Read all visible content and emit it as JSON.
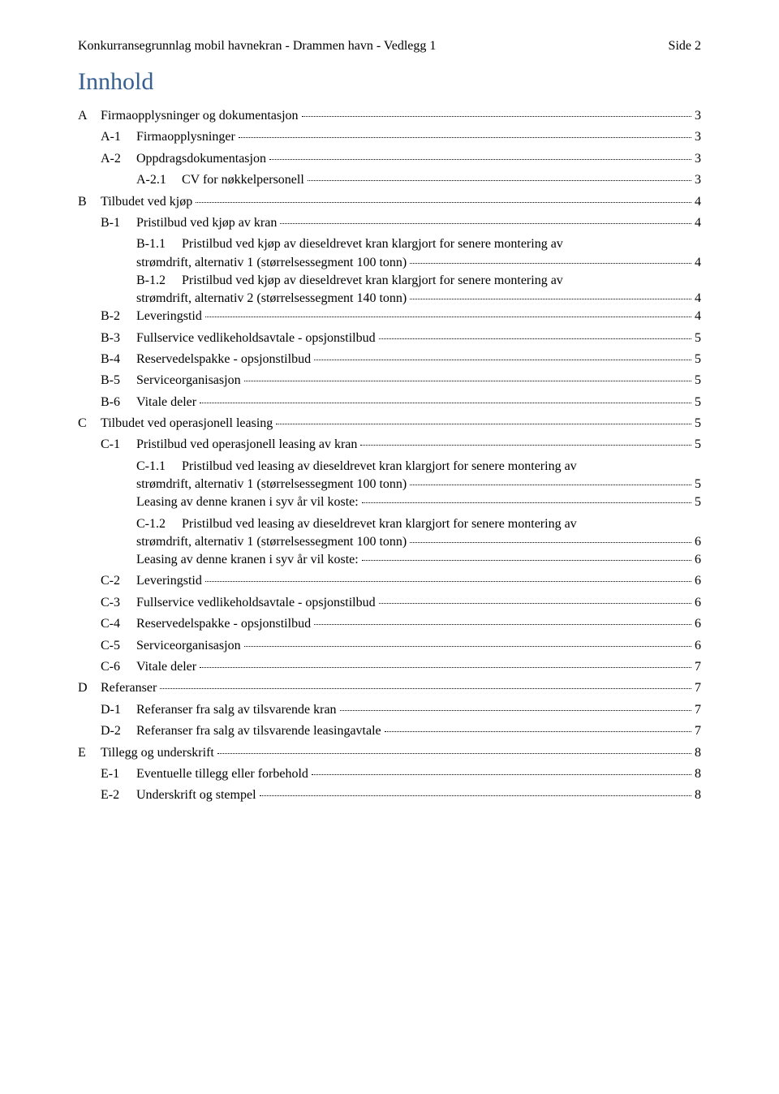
{
  "header": {
    "left": "Konkurransegrunnlag mobil havnekran - Drammen havn - Vedlegg 1",
    "right": "Side 2"
  },
  "title": "Innhold",
  "entries": [
    {
      "level": 0,
      "label": "A",
      "text": "Firmaopplysninger og dokumentasjon",
      "page": "3"
    },
    {
      "level": 1,
      "label": "A-1",
      "text": "Firmaopplysninger",
      "page": "3"
    },
    {
      "level": 1,
      "label": "A-2",
      "text": "Oppdragsdokumentasjon",
      "page": "3"
    },
    {
      "level": 2,
      "label": "A-2.1",
      "text": "CV for nøkkelpersonell",
      "page": "3"
    },
    {
      "level": 0,
      "label": "B",
      "text": "Tilbudet ved kjøp",
      "page": "4"
    },
    {
      "level": 1,
      "label": "B-1",
      "text": "Pristilbud ved kjøp av kran",
      "page": "4"
    },
    {
      "level": 2,
      "label": "B-1.1",
      "text1": "Pristilbud ved kjøp av dieseldrevet kran klargjort for senere montering av",
      "text2": "strømdrift, alternativ 1 (størrelsessegment 100 tonn)",
      "page": "4",
      "multiline": true
    },
    {
      "level": 2,
      "label": "B-1.2",
      "text1": "Pristilbud ved kjøp av dieseldrevet kran klargjort for senere montering av",
      "text2": "strømdrift, alternativ 2 (størrelsessegment 140 tonn)",
      "page": "4",
      "multiline": true
    },
    {
      "level": 1,
      "label": "B-2",
      "text": "Leveringstid",
      "page": "4"
    },
    {
      "level": 1,
      "label": "B-3",
      "text": "Fullservice vedlikeholdsavtale - opsjonstilbud",
      "page": "5"
    },
    {
      "level": 1,
      "label": "B-4",
      "text": "Reservedelspakke - opsjonstilbud",
      "page": "5"
    },
    {
      "level": 1,
      "label": "B-5",
      "text": "Serviceorganisasjon",
      "page": "5"
    },
    {
      "level": 1,
      "label": "B-6",
      "text": "Vitale deler",
      "page": "5"
    },
    {
      "level": 0,
      "label": "C",
      "text": "Tilbudet ved operasjonell leasing",
      "page": "5"
    },
    {
      "level": 1,
      "label": "C-1",
      "text": "Pristilbud ved operasjonell leasing av kran",
      "page": "5"
    },
    {
      "level": 2,
      "label": "C-1.1",
      "text1": "Pristilbud ved leasing av dieseldrevet kran klargjort for senere montering av",
      "text2": "strømdrift, alternativ 1 (størrelsessegment 100 tonn)",
      "page": "5",
      "multiline": true
    },
    {
      "level": "2b",
      "label": "",
      "text": "Leasing av denne kranen i syv år vil koste:",
      "page": "5"
    },
    {
      "level": 2,
      "label": "C-1.2",
      "text1": "Pristilbud ved leasing av dieseldrevet kran klargjort for senere montering av",
      "text2": "strømdrift, alternativ 1 (størrelsessegment 100 tonn)",
      "page": "6",
      "multiline": true
    },
    {
      "level": "2b",
      "label": "",
      "text": "Leasing av denne kranen i syv år vil koste:",
      "page": "6"
    },
    {
      "level": 1,
      "label": "C-2",
      "text": "Leveringstid",
      "page": "6"
    },
    {
      "level": 1,
      "label": "C-3",
      "text": "Fullservice vedlikeholdsavtale - opsjonstilbud",
      "page": "6"
    },
    {
      "level": 1,
      "label": "C-4",
      "text": "Reservedelspakke - opsjonstilbud",
      "page": "6"
    },
    {
      "level": 1,
      "label": "C-5",
      "text": "Serviceorganisasjon",
      "page": "6"
    },
    {
      "level": 1,
      "label": "C-6",
      "text": "Vitale deler",
      "page": "7"
    },
    {
      "level": 0,
      "label": "D",
      "text": "Referanser",
      "page": "7"
    },
    {
      "level": 1,
      "label": "D-1",
      "text": "Referanser fra salg av tilsvarende kran",
      "page": "7"
    },
    {
      "level": 1,
      "label": "D-2",
      "text": "Referanser fra salg av tilsvarende leasingavtale",
      "page": "7"
    },
    {
      "level": 0,
      "label": "E",
      "text": "Tillegg og underskrift",
      "page": "8"
    },
    {
      "level": 1,
      "label": "E-1",
      "text": "Eventuelle tillegg eller forbehold",
      "page": "8"
    },
    {
      "level": 1,
      "label": "E-2",
      "text": "Underskrift og stempel",
      "page": "8"
    }
  ]
}
